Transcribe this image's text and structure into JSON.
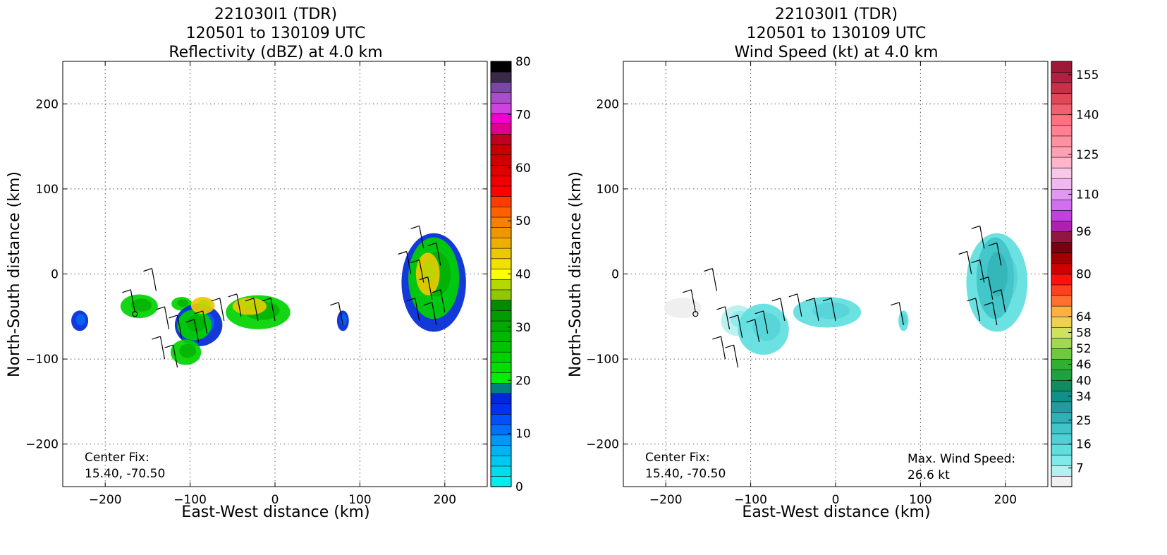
{
  "chart_data": [
    {
      "type": "heatmap",
      "title_lines": [
        "221030I1 (TDR)",
        "120501 to 130109 UTC",
        "Reflectivity (dBZ) at 4.0 km"
      ],
      "xlabel": "East-West distance (km)",
      "ylabel": "North-South distance (km)",
      "xlim": [
        -250,
        250
      ],
      "ylim": [
        -250,
        250
      ],
      "xticks": [
        -200,
        -100,
        0,
        100,
        200
      ],
      "yticks": [
        -200,
        -100,
        0,
        100,
        200
      ],
      "xtick_labels": [
        "−200",
        "−100",
        "0",
        "100",
        "200"
      ],
      "ytick_labels": [
        "−200",
        "−100",
        "0",
        "100",
        "200"
      ],
      "grid": true,
      "annotation": {
        "line1": "Center Fix:",
        "line2": "15.40, -70.50"
      },
      "colorbar": {
        "levels": [
          0,
          80
        ],
        "tick_values": [
          0,
          10,
          20,
          30,
          40,
          50,
          60,
          70,
          80
        ],
        "tick_labels": [
          "0",
          "10",
          "20",
          "30",
          "40",
          "50",
          "60",
          "70",
          "80"
        ],
        "colors": [
          "#00eeee",
          "#00dcee",
          "#00c8f0",
          "#00b4f4",
          "#0098f8",
          "#0070fa",
          "#0050fc",
          "#0030f0",
          "#0028d8",
          "#008080",
          "#00ee00",
          "#00e000",
          "#00d200",
          "#00c400",
          "#00b800",
          "#00aa00",
          "#009c00",
          "#008c00",
          "#90c800",
          "#b4d800",
          "#ffff00",
          "#f2e000",
          "#eec800",
          "#eeb000",
          "#f29600",
          "#f88000",
          "#ff6000",
          "#ff3c00",
          "#ff0000",
          "#f00000",
          "#e00000",
          "#d00000",
          "#c80000",
          "#c00020",
          "#e0008c",
          "#f000d0",
          "#cc44dd",
          "#a84ec8",
          "#7a46a8",
          "#3a2a4a",
          "#000000"
        ]
      },
      "echo_regions": [
        {
          "x": 187,
          "y": -10,
          "rx": 38,
          "ry": 58,
          "level": "low"
        },
        {
          "x": 187,
          "y": -5,
          "rx": 30,
          "ry": 48,
          "level": "mid"
        },
        {
          "x": 180,
          "y": 0,
          "rx": 14,
          "ry": 25,
          "level": "high"
        },
        {
          "x": -160,
          "y": -38,
          "rx": 22,
          "ry": 14,
          "level": "mid"
        },
        {
          "x": -110,
          "y": -35,
          "rx": 12,
          "ry": 8,
          "level": "mid"
        },
        {
          "x": -90,
          "y": -60,
          "rx": 28,
          "ry": 25,
          "level": "low"
        },
        {
          "x": -95,
          "y": -60,
          "rx": 20,
          "ry": 18,
          "level": "mid"
        },
        {
          "x": -105,
          "y": -92,
          "rx": 18,
          "ry": 15,
          "level": "mid"
        },
        {
          "x": -20,
          "y": -45,
          "rx": 38,
          "ry": 20,
          "level": "mid"
        },
        {
          "x": -30,
          "y": -38,
          "rx": 20,
          "ry": 10,
          "level": "high"
        },
        {
          "x": -85,
          "y": -37,
          "rx": 14,
          "ry": 10,
          "level": "high"
        },
        {
          "x": -230,
          "y": -55,
          "rx": 10,
          "ry": 12,
          "level": "low"
        },
        {
          "x": 80,
          "y": -55,
          "rx": 7,
          "ry": 12,
          "level": "low"
        }
      ]
    },
    {
      "type": "heatmap",
      "title_lines": [
        "221030I1 (TDR)",
        "120501 to 130109 UTC",
        "Wind Speed (kt) at 4.0 km"
      ],
      "xlabel": "East-West distance (km)",
      "ylabel": "North-South distance (km)",
      "xlim": [
        -250,
        250
      ],
      "ylim": [
        -250,
        250
      ],
      "xticks": [
        -200,
        -100,
        0,
        100,
        200
      ],
      "yticks": [
        -200,
        -100,
        0,
        100,
        200
      ],
      "xtick_labels": [
        "−200",
        "−100",
        "0",
        "100",
        "200"
      ],
      "ytick_labels": [
        "−200",
        "−100",
        "0",
        "100",
        "200"
      ],
      "grid": true,
      "annotation": {
        "line1": "Center Fix:",
        "line2": "15.40, -70.50"
      },
      "annotation_right": {
        "line1": "Max. Wind Speed:",
        "line2": "26.6 kt"
      },
      "max_wind_kt": 26.6,
      "colorbar": {
        "levels": [
          0,
          160
        ],
        "tick_values": [
          7,
          16,
          25,
          34,
          40,
          46,
          52,
          58,
          64,
          80,
          96,
          110,
          125,
          140,
          155
        ],
        "tick_labels": [
          "7",
          "16",
          "25",
          "34",
          "40",
          "46",
          "52",
          "58",
          "64",
          "80",
          "96",
          "110",
          "125",
          "140",
          "155"
        ],
        "colors": [
          "#f0f0f0",
          "#b4f0f0",
          "#80eaea",
          "#60dede",
          "#50d0d4",
          "#40c4c8",
          "#30b0b4",
          "#209ca0",
          "#109088",
          "#108c60",
          "#20a040",
          "#30b030",
          "#70c840",
          "#a0d850",
          "#d0e060",
          "#f0d050",
          "#ffb040",
          "#ff7030",
          "#ff4020",
          "#ff1010",
          "#d00000",
          "#a00000",
          "#780010",
          "#901840",
          "#b020b0",
          "#c040e0",
          "#d070f0",
          "#e098f0",
          "#f0b8f0",
          "#f8c8e8",
          "#ffb4cc",
          "#ffa0b4",
          "#ff90a0",
          "#ff8090",
          "#ff7080",
          "#f06070",
          "#e04858",
          "#c83048",
          "#b02040",
          "#a01838"
        ]
      },
      "echo_regions": [
        {
          "x": 190,
          "y": -10,
          "rx": 36,
          "ry": 58,
          "level": "mid"
        },
        {
          "x": 188,
          "y": -5,
          "rx": 22,
          "ry": 48,
          "level": "high"
        },
        {
          "x": -180,
          "y": -40,
          "rx": 22,
          "ry": 12,
          "level": "calm"
        },
        {
          "x": -115,
          "y": -55,
          "rx": 20,
          "ry": 18,
          "level": "low"
        },
        {
          "x": -85,
          "y": -65,
          "rx": 30,
          "ry": 30,
          "level": "mid"
        },
        {
          "x": -10,
          "y": -45,
          "rx": 40,
          "ry": 18,
          "level": "mid"
        },
        {
          "x": 80,
          "y": -55,
          "rx": 6,
          "ry": 12,
          "level": "mid"
        }
      ]
    }
  ]
}
